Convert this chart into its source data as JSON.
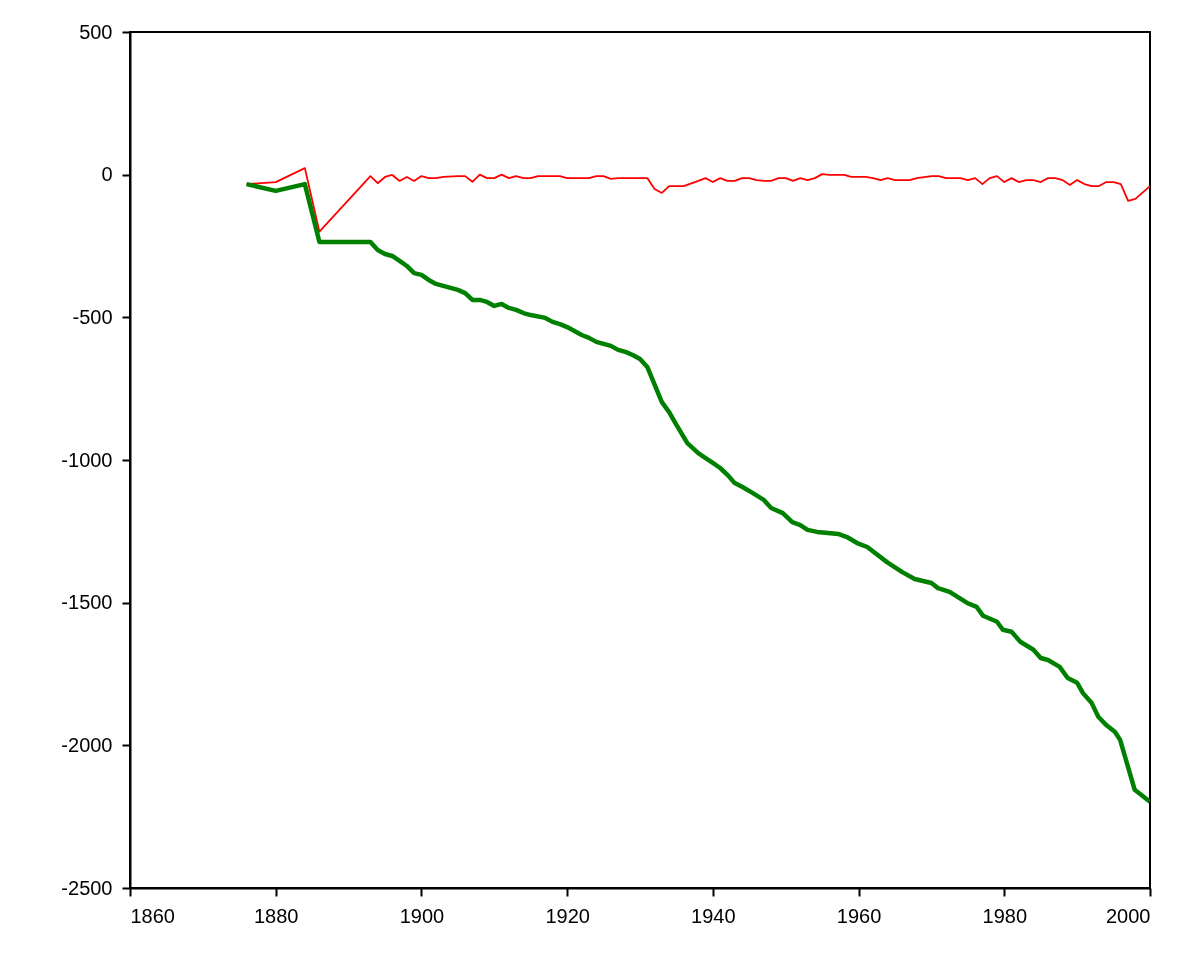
{
  "chart_data": {
    "type": "line",
    "xlim": [
      1860,
      2000
    ],
    "xticks": [
      1860,
      1880,
      1900,
      1920,
      1940,
      1960,
      1980,
      2000
    ],
    "ylim": [
      -2500,
      500
    ],
    "yticks": [
      -2500,
      -2000,
      -1500,
      -1000,
      -500,
      0,
      500
    ],
    "grid": false,
    "marker": "none",
    "line_style": "solid",
    "series": [
      {
        "color": "#ff0000",
        "x": [
          1876,
          1880,
          1884,
          1886,
          1893,
          1894,
          1895,
          1896,
          1897,
          1898,
          1899,
          1900,
          1901,
          1902,
          1903,
          1905,
          1906,
          1907,
          1908,
          1909,
          1910,
          1911,
          1912,
          1913,
          1914,
          1915,
          1916,
          1919,
          1920,
          1923,
          1924,
          1925,
          1926,
          1927,
          1931,
          1932,
          1933,
          1934,
          1936,
          1938,
          1939,
          1940,
          1941,
          1942,
          1943,
          1944,
          1945,
          1946,
          1947,
          1948,
          1949,
          1950,
          1951,
          1952,
          1953,
          1954,
          1955,
          1956,
          1958,
          1959,
          1961,
          1962,
          1963,
          1964,
          1965,
          1967,
          1968,
          1970,
          1971,
          1972,
          1974,
          1975,
          1976,
          1977,
          1978,
          1979,
          1980,
          1981,
          1982,
          1983,
          1984,
          1985,
          1986,
          1987,
          1988,
          1989,
          1990,
          1991,
          1992,
          1993,
          1994,
          1995,
          1996,
          1997,
          1998,
          2000
        ],
        "values": [
          -33,
          -26,
          23,
          -200,
          -5,
          -30,
          -8,
          -1,
          -22,
          -8,
          -22,
          -5,
          -12,
          -12,
          -8,
          -5,
          -5,
          -25,
          0,
          -12,
          -12,
          0,
          -12,
          -5,
          -12,
          -12,
          -5,
          -5,
          -12,
          -12,
          -5,
          -5,
          -15,
          -12,
          -12,
          -50,
          -64,
          -40,
          -40,
          -22,
          -12,
          -26,
          -12,
          -22,
          -22,
          -12,
          -12,
          -19,
          -22,
          -22,
          -12,
          -12,
          -22,
          -12,
          -19,
          -12,
          2,
          -1,
          -1,
          -8,
          -8,
          -12,
          -19,
          -12,
          -19,
          -19,
          -12,
          -5,
          -5,
          -12,
          -12,
          -19,
          -12,
          -33,
          -12,
          -5,
          -26,
          -12,
          -26,
          -19,
          -19,
          -26,
          -12,
          -12,
          -19,
          -36,
          -19,
          -33,
          -40,
          -40,
          -26,
          -26,
          -33,
          -92,
          -85,
          -40
        ]
      },
      {
        "color": "#008000",
        "x": [
          1876,
          1880,
          1884,
          1886,
          1893,
          1894,
          1895,
          1896,
          1897,
          1898,
          1899,
          1900,
          1901,
          1902,
          1903,
          1905,
          1906,
          1907,
          1908,
          1909,
          1910,
          1911,
          1912,
          1913,
          1914,
          1915,
          1917,
          1918,
          1919,
          1920,
          1921,
          1922,
          1923,
          1924,
          1925,
          1926,
          1927,
          1928,
          1929,
          1930,
          1931,
          1933,
          1934,
          1935,
          1936.5,
          1938,
          1939,
          1940,
          1941,
          1942,
          1943,
          1944,
          1945.5,
          1947,
          1948,
          1949.6,
          1950.9,
          1952,
          1953,
          1954.3,
          1955.8,
          1957.2,
          1958.4,
          1959.8,
          1961.2,
          1963.9,
          1966,
          1967.7,
          1970,
          1970.9,
          1972.5,
          1974.9,
          1976.2,
          1977.1,
          1979,
          1979.8,
          1981,
          1982.2,
          1984,
          1985,
          1986,
          1987.6,
          1988.7,
          1990,
          1990.8,
          1992,
          1992.9,
          1994,
          1995.2,
          1995.9,
          1997.9,
          2000
        ],
        "values": [
          -33,
          -57,
          -33,
          -236,
          -236,
          -264,
          -278,
          -285,
          -302,
          -320,
          -345,
          -351,
          -369,
          -383,
          -390,
          -404,
          -415,
          -439,
          -439,
          -446,
          -460,
          -453,
          -467,
          -474,
          -485,
          -492,
          -502,
          -516,
          -524,
          -534,
          -548,
          -562,
          -572,
          -586,
          -593,
          -600,
          -614,
          -621,
          -632,
          -646,
          -674,
          -797,
          -832,
          -877,
          -941,
          -976,
          -993,
          -1010,
          -1028,
          -1052,
          -1081,
          -1094,
          -1116,
          -1140,
          -1168,
          -1186,
          -1218,
          -1228,
          -1245,
          -1252,
          -1256,
          -1259,
          -1270,
          -1291,
          -1305,
          -1358,
          -1393,
          -1417,
          -1431,
          -1449,
          -1462,
          -1501,
          -1515,
          -1546,
          -1567,
          -1595,
          -1602,
          -1637,
          -1665,
          -1694,
          -1701,
          -1725,
          -1764,
          -1781,
          -1817,
          -1852,
          -1900,
          -1929,
          -1953,
          -1981,
          -2156,
          -2198
        ]
      }
    ]
  }
}
